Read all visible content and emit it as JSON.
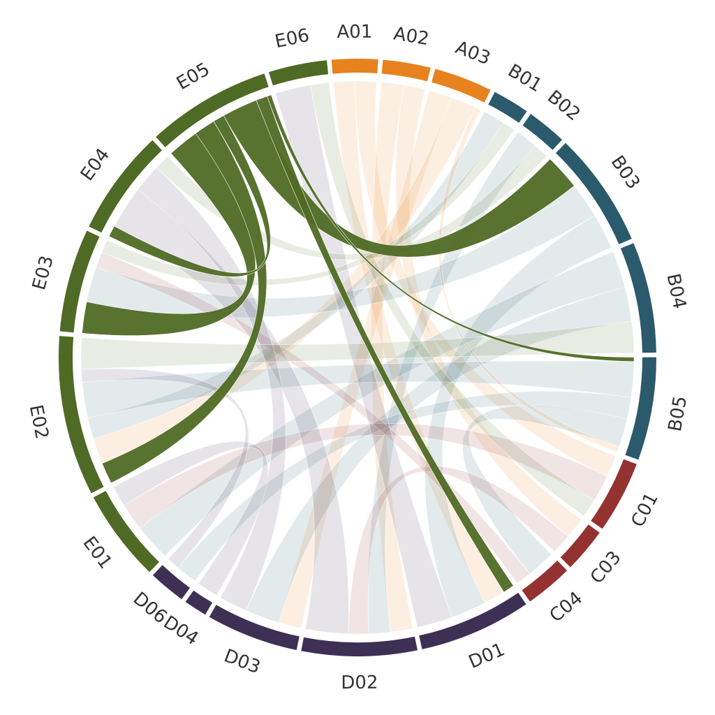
{
  "group_colors": {
    "A": "#e8821e",
    "B": "#2a5a6b",
    "C": "#943232",
    "D": "#3e2f55",
    "E": "#4f6a24"
  },
  "highlight": "E05",
  "segments": [
    {
      "id": "A01",
      "group": "A"
    },
    {
      "id": "A02",
      "group": "A"
    },
    {
      "id": "A03",
      "group": "A"
    },
    {
      "id": "B01",
      "group": "B"
    },
    {
      "id": "B02",
      "group": "B"
    },
    {
      "id": "B03",
      "group": "B"
    },
    {
      "id": "B04",
      "group": "B"
    },
    {
      "id": "B05",
      "group": "B"
    },
    {
      "id": "C01",
      "group": "C"
    },
    {
      "id": "C03",
      "group": "C"
    },
    {
      "id": "C04",
      "group": "C"
    },
    {
      "id": "D01",
      "group": "D"
    },
    {
      "id": "D02",
      "group": "D"
    },
    {
      "id": "D03",
      "group": "D"
    },
    {
      "id": "D04",
      "group": "D"
    },
    {
      "id": "D06",
      "group": "D"
    },
    {
      "id": "E01",
      "group": "E"
    },
    {
      "id": "E02",
      "group": "E"
    },
    {
      "id": "E03",
      "group": "E"
    },
    {
      "id": "E04",
      "group": "E"
    },
    {
      "id": "E05",
      "group": "E"
    },
    {
      "id": "E06",
      "group": "E"
    }
  ],
  "links": [
    {
      "source": "E05",
      "target": "E03",
      "value": 2.2
    },
    {
      "source": "E05",
      "target": "E02",
      "value": 1.5
    },
    {
      "source": "E05",
      "target": "E04",
      "value": 0.8
    },
    {
      "source": "E05",
      "target": "B03",
      "value": 2.5
    },
    {
      "source": "E05",
      "target": "D01",
      "value": 0.8
    },
    {
      "source": "E05",
      "target": "B05",
      "value": 0.3
    },
    {
      "source": "A01",
      "target": "D01",
      "value": 1.5
    },
    {
      "source": "A01",
      "target": "C01",
      "value": 1.5
    },
    {
      "source": "A02",
      "target": "D02",
      "value": 1.6
    },
    {
      "source": "A02",
      "target": "C03",
      "value": 1.5
    },
    {
      "source": "A03",
      "target": "D03",
      "value": 1.6
    },
    {
      "source": "A03",
      "target": "E02",
      "value": 1.8
    },
    {
      "source": "B01",
      "target": "E02",
      "value": 1.5
    },
    {
      "source": "B02",
      "target": "D02",
      "value": 1.5
    },
    {
      "source": "B03",
      "target": "E03",
      "value": 2.5
    },
    {
      "source": "B03",
      "target": "D01",
      "value": 2.5
    },
    {
      "source": "B04",
      "target": "E01",
      "value": 2.6
    },
    {
      "source": "B04",
      "target": "D03",
      "value": 2.4
    },
    {
      "source": "B05",
      "target": "E02",
      "value": 2.5
    },
    {
      "source": "B05",
      "target": "D06",
      "value": 1.5
    },
    {
      "source": "B05",
      "target": "C04",
      "value": 2.0
    },
    {
      "source": "C01",
      "target": "E01",
      "value": 1.9
    },
    {
      "source": "C03",
      "target": "D02",
      "value": 1.4
    },
    {
      "source": "C04",
      "target": "E03",
      "value": 1.1
    },
    {
      "source": "D01",
      "target": "E06",
      "value": 2.5
    },
    {
      "source": "D02",
      "target": "E04",
      "value": 3.0
    },
    {
      "source": "D03",
      "target": "E04",
      "value": 2.0
    },
    {
      "source": "D04",
      "target": "E01",
      "value": 1.5
    },
    {
      "source": "D06",
      "target": "E02",
      "value": 0.9
    },
    {
      "source": "E06",
      "target": "C01",
      "value": 1.3
    },
    {
      "source": "E04",
      "target": "B02",
      "value": 1.1
    },
    {
      "source": "E03",
      "target": "B01",
      "value": 0.9
    },
    {
      "source": "E02",
      "target": "B04",
      "value": 2.2
    },
    {
      "source": "A03",
      "target": "B05",
      "value": 0.4
    }
  ]
}
